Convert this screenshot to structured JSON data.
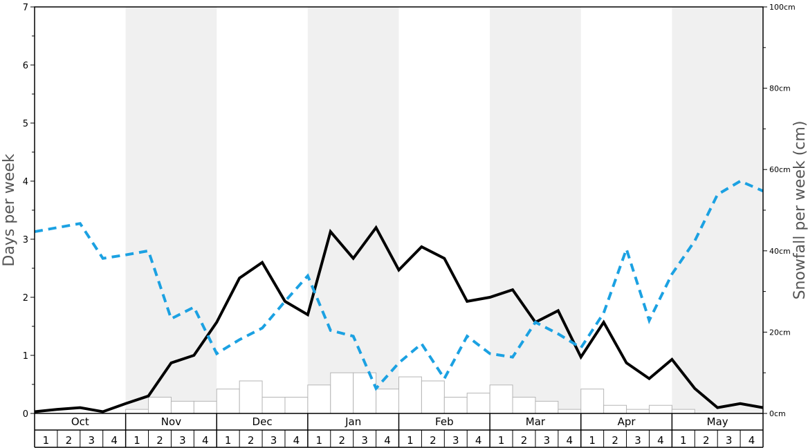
{
  "chart_data": {
    "type": "bar+line",
    "y_left_label": "Days per week",
    "y_right_label": "Snowfall per week (cm)",
    "y_left_range": [
      0,
      7
    ],
    "y_right_range": [
      0,
      100
    ],
    "y_left_ticks": [
      "0",
      "1",
      "2",
      "3",
      "4",
      "5",
      "6",
      "7"
    ],
    "y_right_ticks": [
      "0cm",
      "20cm",
      "40cm",
      "60cm",
      "80cm",
      "100cm"
    ],
    "months": [
      "Oct",
      "Nov",
      "Dec",
      "Jan",
      "Feb",
      "Mar",
      "Apr",
      "May"
    ],
    "week_labels": [
      "1",
      "2",
      "3",
      "4"
    ],
    "grid": false,
    "shaded_months": [
      "Nov",
      "Jan",
      "Mar",
      "May"
    ],
    "snowfall_bars_cm": [
      0,
      0,
      0,
      0,
      1,
      4,
      3,
      3,
      6,
      8,
      4,
      4,
      7,
      10,
      10,
      6,
      9,
      8,
      4,
      5,
      7,
      4,
      3,
      1,
      6,
      2,
      1,
      2,
      1,
      0,
      0,
      0
    ],
    "series": [
      {
        "style": "solid",
        "color": "#000000",
        "axis": "left",
        "values": [
          0.03,
          0.07,
          0.1,
          0.03,
          0.17,
          0.3,
          0.87,
          1.0,
          1.57,
          2.33,
          2.6,
          1.93,
          1.7,
          3.13,
          2.67,
          3.2,
          2.47,
          2.87,
          2.67,
          1.93,
          2.0,
          2.13,
          1.57,
          1.77,
          0.97,
          1.57,
          0.87,
          0.6,
          0.93,
          0.43,
          0.1,
          0.17,
          0.1
        ]
      },
      {
        "style": "dashed",
        "color": "#1ba1e2",
        "axis": "left",
        "values": [
          3.13,
          3.2,
          3.27,
          2.67,
          2.73,
          2.8,
          1.63,
          1.83,
          1.03,
          1.27,
          1.47,
          1.93,
          2.37,
          1.43,
          1.33,
          0.43,
          0.87,
          1.2,
          0.6,
          1.33,
          1.03,
          0.97,
          1.57,
          1.37,
          1.13,
          1.73,
          2.83,
          1.6,
          2.4,
          2.97,
          3.77,
          4.0,
          3.83
        ]
      }
    ]
  }
}
